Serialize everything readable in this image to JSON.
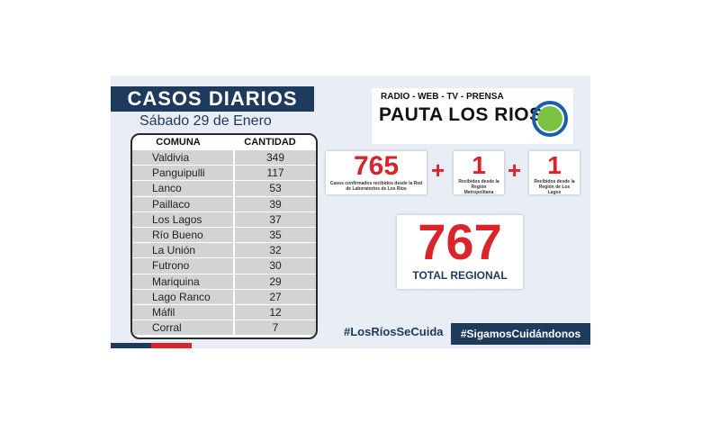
{
  "header": {
    "title": "CASOS DIARIOS",
    "date": "Sábado 29 de Enero"
  },
  "table": {
    "headers": [
      "COMUNA",
      "CANTIDAD"
    ],
    "rows": [
      {
        "comuna": "Valdivia",
        "cantidad": "349"
      },
      {
        "comuna": "Panguipulli",
        "cantidad": "117"
      },
      {
        "comuna": "Lanco",
        "cantidad": "53"
      },
      {
        "comuna": "Paillaco",
        "cantidad": "39"
      },
      {
        "comuna": "Los Lagos",
        "cantidad": "37"
      },
      {
        "comuna": "Río Bueno",
        "cantidad": "35"
      },
      {
        "comuna": "La Unión",
        "cantidad": "32"
      },
      {
        "comuna": "Futrono",
        "cantidad": "30"
      },
      {
        "comuna": "Mariquina",
        "cantidad": "29"
      },
      {
        "comuna": "Lago Ranco",
        "cantidad": "27"
      },
      {
        "comuna": "Máfil",
        "cantidad": "12"
      },
      {
        "comuna": "Corral",
        "cantidad": "7"
      }
    ]
  },
  "logo": {
    "tagline": "RADIO - WEB - TV - PRENSA",
    "name": "PAUTA LOS RIOS"
  },
  "stats": [
    {
      "value": "765",
      "label": "Casos confirmados recibidos desde la Red de Laboratorios de Los Ríos"
    },
    {
      "value": "1",
      "label": "Recibidos desde la Región Metropolitana"
    },
    {
      "value": "1",
      "label": "Recibidos desde la Región de Los Lagos"
    }
  ],
  "plus_symbol": "+",
  "total": {
    "value": "767",
    "label": "TOTAL REGIONAL"
  },
  "hashtags": {
    "first": "#LosRíosSeCuida",
    "second": "#SigamosCuidándonos"
  },
  "colors": {
    "navy": "#1e3a5c",
    "red": "#d9242b",
    "green": "#7cc242",
    "blue": "#1b5fa8"
  }
}
